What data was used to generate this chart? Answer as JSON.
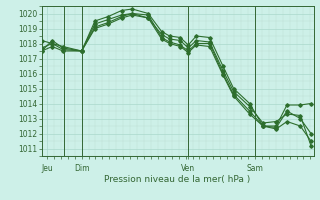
{
  "title": "",
  "xlabel": "Pression niveau de la mer( hPa )",
  "bg_color": "#cdf0e8",
  "grid_color_major": "#aad8cc",
  "grid_color_minor": "#bbddd4",
  "line_color": "#2d6e2d",
  "ylim": [
    1010.5,
    1020.5
  ],
  "xlim": [
    0,
    10.2
  ],
  "yticks": [
    1011,
    1012,
    1013,
    1014,
    1015,
    1016,
    1017,
    1018,
    1019,
    1020
  ],
  "series": [
    {
      "x": [
        0.0,
        0.4,
        0.8,
        1.5,
        2.0,
        2.5,
        3.0,
        3.4,
        4.0,
        4.5,
        4.8,
        5.2,
        5.5,
        5.8,
        6.3,
        6.8,
        7.2,
        7.8,
        8.3,
        8.8,
        9.2,
        9.7,
        10.1
      ],
      "y": [
        1017.5,
        1018.2,
        1017.7,
        1017.5,
        1019.5,
        1019.8,
        1020.2,
        1020.3,
        1020.0,
        1018.8,
        1018.5,
        1018.4,
        1017.9,
        1018.5,
        1018.4,
        1016.5,
        1015.0,
        1014.0,
        1012.5,
        1012.5,
        1013.9,
        1013.9,
        1014.0
      ]
    },
    {
      "x": [
        0.0,
        0.4,
        0.8,
        1.5,
        2.0,
        2.5,
        3.0,
        3.4,
        4.0,
        4.5,
        4.8,
        5.2,
        5.5,
        5.8,
        6.3,
        6.8,
        7.2,
        7.8,
        8.3,
        8.8,
        9.2,
        9.7,
        10.1
      ],
      "y": [
        1017.7,
        1018.0,
        1017.6,
        1017.5,
        1019.3,
        1019.6,
        1019.9,
        1020.0,
        1019.7,
        1018.6,
        1018.3,
        1018.2,
        1017.7,
        1018.2,
        1018.1,
        1016.2,
        1014.8,
        1013.8,
        1012.7,
        1012.8,
        1013.3,
        1013.2,
        1011.2
      ]
    },
    {
      "x": [
        0.0,
        0.4,
        0.8,
        1.5,
        2.0,
        2.5,
        3.0,
        3.4,
        4.0,
        4.5,
        4.8,
        5.2,
        5.5,
        5.8,
        6.3,
        6.8,
        7.2,
        7.8,
        8.3,
        8.8,
        9.2,
        9.7,
        10.1
      ],
      "y": [
        1018.2,
        1018.0,
        1017.8,
        1017.5,
        1019.0,
        1019.3,
        1019.7,
        1019.9,
        1019.7,
        1018.3,
        1018.0,
        1017.8,
        1017.4,
        1017.9,
        1017.8,
        1015.9,
        1014.5,
        1013.3,
        1012.5,
        1012.3,
        1012.8,
        1012.5,
        1011.5
      ]
    },
    {
      "x": [
        0.0,
        0.4,
        0.8,
        1.5,
        2.0,
        2.5,
        3.0,
        3.4,
        4.0,
        4.5,
        4.8,
        5.2,
        5.5,
        5.8,
        6.3,
        6.8,
        7.2,
        7.8,
        8.3,
        8.8,
        9.2,
        9.7,
        10.1
      ],
      "y": [
        1017.5,
        1017.8,
        1017.5,
        1017.5,
        1019.1,
        1019.4,
        1019.8,
        1020.0,
        1019.9,
        1018.4,
        1018.1,
        1017.9,
        1017.5,
        1018.0,
        1018.0,
        1016.0,
        1014.6,
        1013.5,
        1012.5,
        1012.4,
        1013.5,
        1013.0,
        1012.0
      ]
    }
  ],
  "xtick_positions": [
    0.2,
    1.5,
    5.5,
    8.0
  ],
  "xtick_labels": [
    "Jeu",
    "Dim",
    "Ven",
    "Sam"
  ],
  "vline_positions": [
    0.85,
    1.5,
    5.5,
    8.0
  ]
}
